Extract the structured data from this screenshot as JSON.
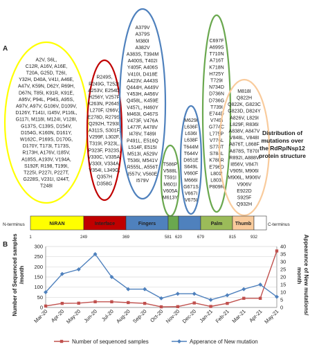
{
  "panel_a": {
    "label": "A",
    "side_note": [
      "Distribution of",
      "mutations over",
      "the RdRp/Nsp12",
      "protein structure"
    ],
    "terminus_n": "N-terminus",
    "terminus_c": "C-terminus",
    "domains": [
      {
        "label": "NiRAN",
        "color": "#ffff00"
      },
      {
        "label": "Interface",
        "color": "#c00000"
      },
      {
        "label": "Fingers",
        "color": "#4f81bd"
      },
      {
        "label": "",
        "color": "#6aa84f"
      },
      {
        "label": "",
        "color": "#4f81bd"
      },
      {
        "label": "Palm",
        "color": "#9bbb59"
      },
      {
        "label": "Thumb",
        "color": "#f9cb9c"
      },
      {
        "label": "",
        "color": "#ffffff"
      }
    ],
    "positions": [
      "1",
      "249",
      "369",
      "581",
      "620",
      "679",
      "815",
      "932"
    ],
    "clusters": [
      {
        "color": "#ffff00",
        "mutations": [
          "A2V, S6L,",
          "C12R, A16V, A16E,",
          "T20A, G25D, T26I,",
          "Y32H, D40A, V41I, A46E,",
          "A47V, K59N, D62Y, R69H,",
          "D67N, T85I, K91R, K91E,",
          "A95V, P94L, P94S, A95S,",
          "A97V, A97V, G106V, D109V,",
          "D126Y, T141I, I145V, P116L,",
          "G117I, M118I, M124I, V128I,",
          "G137S, C139S, D154V,",
          "D154G, K160N, D161Y,",
          "W162C, P169S, D170G,",
          "D170Y, T173I, T173S,",
          "R173H, A176V, I185V,",
          "A185S, A193V, V194A,",
          "S192F, R198, T199I,",
          "T225I, P227I, P227T,",
          "G228S, V231I, I244T,",
          "T248I"
        ]
      },
      {
        "color": "#c00000",
        "mutations": [
          "R249S,",
          "R249G, T252I,",
          "A253V, E254D,",
          "H256Y, V257F,",
          "K263N, P264S,",
          "L270F, I266V,",
          "E278D, R279S,",
          "Q292H, T293I,",
          "A311S, S301F,",
          "V299F, L302F,",
          "T319I, P323L,",
          "P323F, P323S,",
          "V330C, V335A,",
          "V330I, V334A,",
          "V354I, L349G,",
          "Q357H",
          "D358G"
        ]
      },
      {
        "color": "#4f81bd",
        "mutations": [
          "A379V",
          "A379S",
          "M380I",
          "A382V",
          "A383S, T394M",
          "A400S, T402I",
          "Y405F, A406S",
          "V410I, D418E",
          "A423V, A443S",
          "Q444H, A449V",
          "Y453H, A456V",
          "Q458L, K459E",
          "V457L, H460Y",
          "M463I, G467S",
          "V473F, V476A",
          "L477F, A478V",
          "I478V, T489I",
          "P491L, E516Q",
          "L514F, E515I",
          "M513I, A529V",
          "T536I, M541V",
          "R555L, A556T",
          "I557V, V560E",
          "I579V"
        ]
      },
      {
        "color": "#6aa84f",
        "mutations": [
          "T586P",
          "V588L",
          "T591I",
          "M601I",
          "V605A",
          "M613Y"
        ]
      },
      {
        "color": "#4f81bd",
        "mutations": [
          "M629I",
          "L636F",
          "L636I",
          "L638F",
          "T644M",
          "T644V",
          "D651E",
          "S649L",
          "V660F",
          "M666I",
          "G671S",
          "V667I",
          "V675I"
        ]
      },
      {
        "color": "#6aa84f",
        "mutations": [
          "C697F",
          "A699S",
          "T710N",
          "A716T",
          "K718N",
          "H725Y",
          "T729I",
          "N734D",
          "D736N",
          "D736G",
          "T739I",
          "E744D",
          "V749I",
          "G774C",
          "L775P",
          "V776L",
          "S778T",
          "S784L",
          "K780R",
          "E796D",
          "L801I",
          "L803I",
          "P809R"
        ]
      },
      {
        "color": "#f9cb9c",
        "mutations": [
          "M818I",
          "Q822H",
          "Q822K, G823C",
          "G823D, D824Y",
          "A826V, L829I",
          "L829F, R836I",
          "A838V, A847V",
          "V848L, V848I",
          "A876T, L868F",
          "A878S, T870I",
          "R892I, A888V",
          "I856V, V847I",
          "V905I, M906I",
          "M906L, M906V",
          "V906V",
          "E922D",
          "S925F",
          "Q932H"
        ]
      }
    ]
  },
  "panel_b": {
    "label": "B",
    "legend": [
      "Number of sequenced samples",
      "Apperance of New mutation"
    ]
  },
  "chart_data": {
    "type": "line",
    "x": [
      "Mar-20",
      "Apr-20",
      "May-20",
      "Jun-20",
      "Jul-20",
      "Aug-20",
      "Sep-20",
      "Oct-20",
      "Nov-20",
      "Dec-20",
      "Jan-21",
      "Feb-21",
      "Mar-21",
      "Apr-21",
      "May-21"
    ],
    "ylabel": "Number of Sequenced samples /month",
    "y2label": "Appearance of New mutations/ month",
    "ylim": [
      0,
      300
    ],
    "y2lim": [
      0,
      40
    ],
    "yticks": [
      0,
      50,
      100,
      150,
      200,
      250,
      300
    ],
    "y2ticks": [
      0,
      5,
      10,
      15,
      20,
      25,
      30,
      35,
      40
    ],
    "series": [
      {
        "name": "Number of sequenced samples",
        "axis": "left",
        "color": "#c0504d",
        "marker": "square",
        "values": [
          7,
          20,
          21,
          28,
          28,
          24,
          20,
          3,
          4,
          22,
          5,
          20,
          45,
          45,
          278
        ]
      },
      {
        "name": "Apperance of New mutation",
        "axis": "right",
        "color": "#4f81bd",
        "marker": "diamond",
        "values": [
          10,
          22,
          25,
          35,
          20,
          12,
          12,
          6,
          9,
          9,
          5,
          8,
          12,
          15,
          7
        ]
      }
    ],
    "legend_position": "bottom"
  }
}
